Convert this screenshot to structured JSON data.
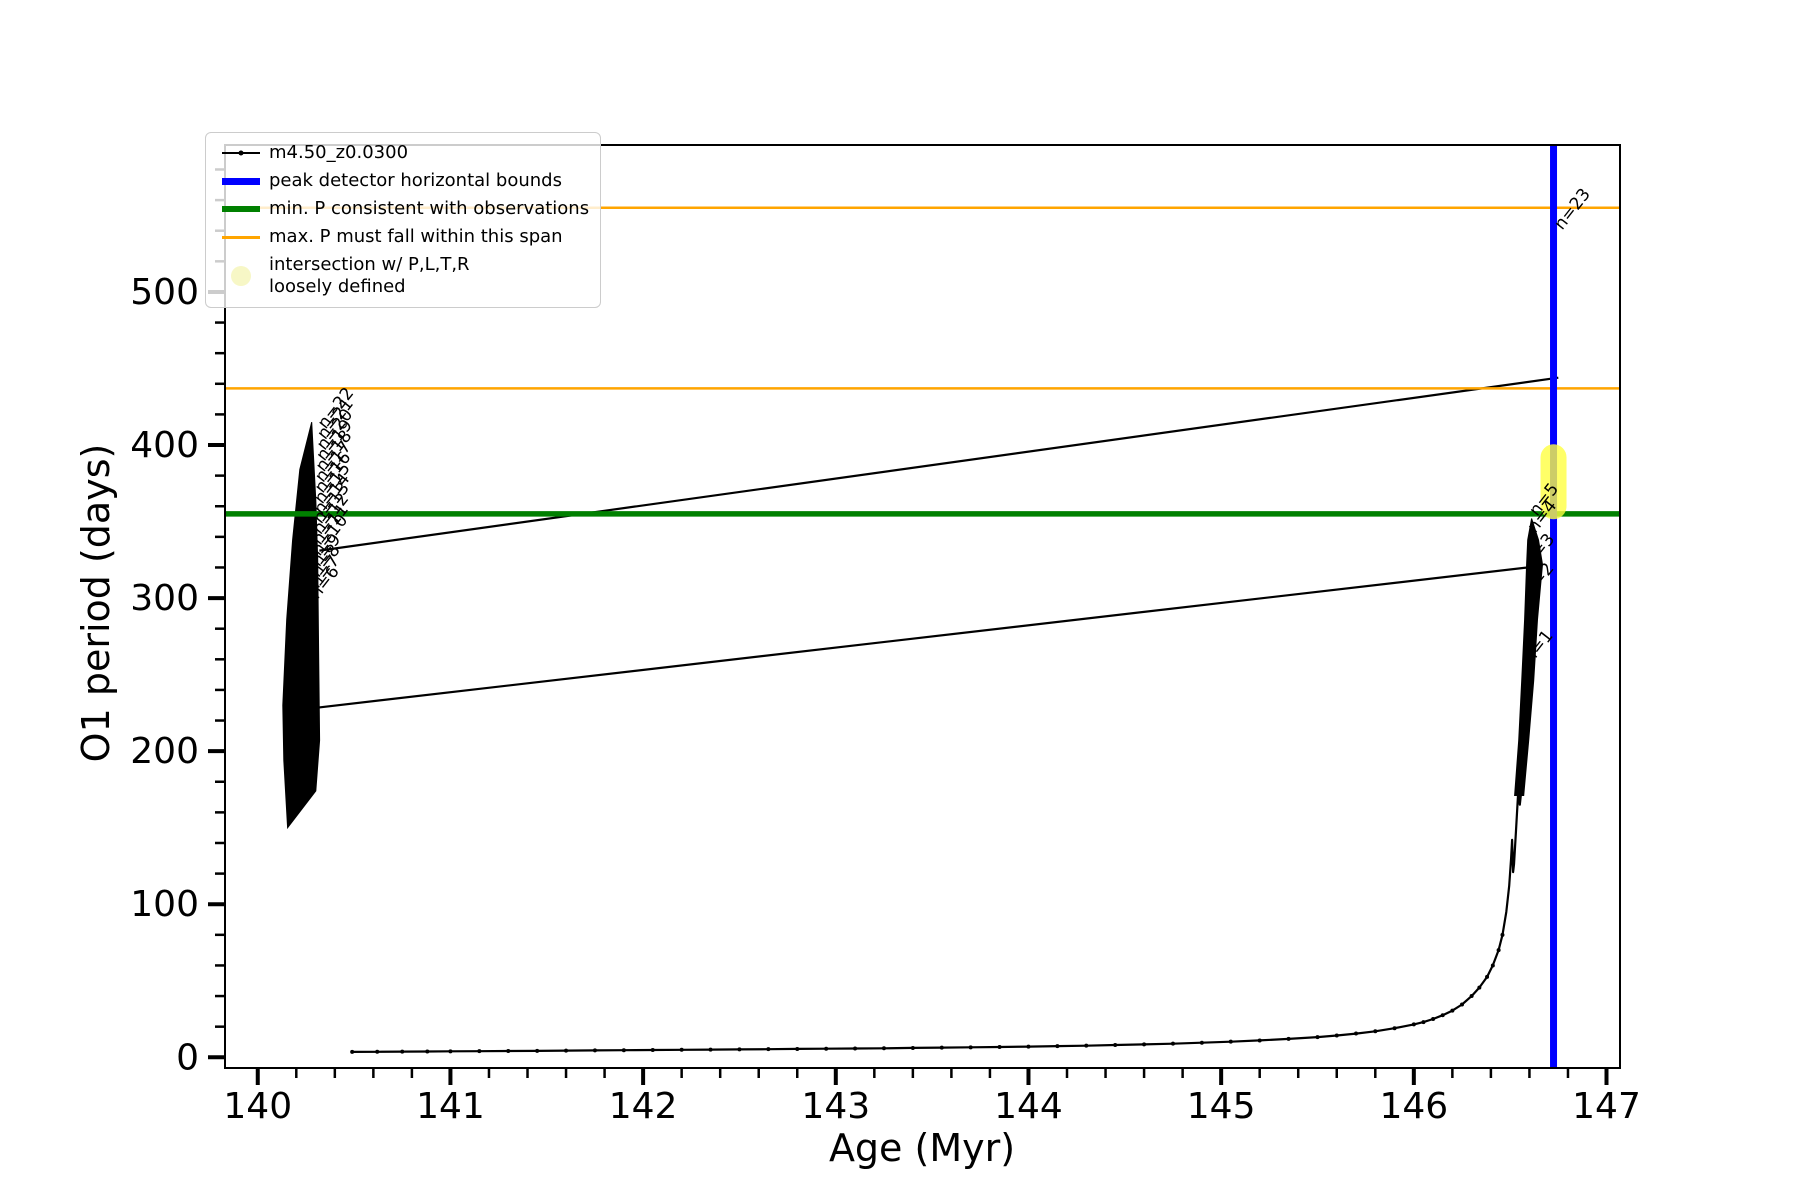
{
  "figure": {
    "background": "#ffffff"
  },
  "legend": {
    "entries": [
      {
        "label": "m4.50_z0.0300",
        "type": "line-with-marker",
        "color": "#000000"
      },
      {
        "label": "peak detector horizontal bounds",
        "type": "thick-line",
        "color": "#0000ff"
      },
      {
        "label": "min. P consistent with observations",
        "type": "thick-line",
        "color": "#008000"
      },
      {
        "label": "max. P must fall within this span",
        "type": "line",
        "color": "#ffa500"
      },
      {
        "label": "intersection w/ P,L,T,R\nloosely defined",
        "type": "dot",
        "color": "#f7f7c6"
      }
    ]
  },
  "chart_data": {
    "type": "line",
    "title": "",
    "xlabel": "Age (Myr)",
    "ylabel": "O1 period (days)",
    "xlim": [
      139.83,
      147.07
    ],
    "ylim": [
      -7,
      596
    ],
    "xticks": [
      140,
      141,
      142,
      143,
      144,
      145,
      146,
      147
    ],
    "yticks": [
      0,
      100,
      200,
      300,
      400,
      500
    ],
    "x_minor_step": 0.2,
    "y_minor_step": 20,
    "grid": false,
    "legend_position": "upper left",
    "series_name": "m4.50_z0.0300",
    "series_color": "#000000",
    "bottom_curve": [
      [
        140.49,
        3.5
      ],
      [
        140.62,
        3.6
      ],
      [
        140.75,
        3.7
      ],
      [
        140.88,
        3.8
      ],
      [
        141.0,
        3.9
      ],
      [
        141.15,
        4.0
      ],
      [
        141.3,
        4.1
      ],
      [
        141.45,
        4.2
      ],
      [
        141.6,
        4.35
      ],
      [
        141.75,
        4.5
      ],
      [
        141.9,
        4.6
      ],
      [
        142.05,
        4.75
      ],
      [
        142.2,
        4.9
      ],
      [
        142.35,
        5.0
      ],
      [
        142.5,
        5.15
      ],
      [
        142.65,
        5.3
      ],
      [
        142.8,
        5.45
      ],
      [
        142.95,
        5.6
      ],
      [
        143.1,
        5.75
      ],
      [
        143.25,
        5.9
      ],
      [
        143.4,
        6.1
      ],
      [
        143.55,
        6.3
      ],
      [
        143.7,
        6.5
      ],
      [
        143.85,
        6.7
      ],
      [
        144.0,
        7.0
      ],
      [
        144.15,
        7.3
      ],
      [
        144.3,
        7.6
      ],
      [
        144.45,
        8.0
      ],
      [
        144.6,
        8.4
      ],
      [
        144.75,
        8.9
      ],
      [
        144.9,
        9.5
      ],
      [
        145.05,
        10.2
      ],
      [
        145.2,
        11.0
      ],
      [
        145.35,
        12.0
      ],
      [
        145.5,
        13.2
      ],
      [
        145.6,
        14.2
      ],
      [
        145.7,
        15.5
      ],
      [
        145.8,
        17.0
      ],
      [
        145.9,
        19.0
      ],
      [
        146.0,
        21.5
      ],
      [
        146.05,
        23.0
      ],
      [
        146.1,
        25.0
      ],
      [
        146.15,
        27.5
      ],
      [
        146.2,
        30.5
      ],
      [
        146.25,
        34.5
      ],
      [
        146.3,
        40.0
      ],
      [
        146.34,
        45.5
      ],
      [
        146.38,
        52.5
      ],
      [
        146.41,
        60.0
      ],
      [
        146.44,
        70.0
      ],
      [
        146.46,
        80.0
      ],
      [
        146.48,
        95.0
      ],
      [
        146.495,
        112.0
      ],
      [
        146.505,
        130.0
      ],
      [
        146.51,
        142.0
      ],
      [
        146.515,
        121.0
      ],
      [
        146.52,
        126.0
      ],
      [
        146.53,
        148.0
      ],
      [
        146.54,
        170.0
      ],
      [
        146.545,
        182.0
      ],
      [
        146.55,
        165.0
      ],
      [
        146.555,
        171.0
      ],
      [
        146.56,
        195.0
      ],
      [
        146.565,
        186.0
      ],
      [
        146.57,
        212.0
      ]
    ],
    "jump_lines": [
      [
        [
          140.32,
          331
        ],
        [
          146.75,
          444
        ]
      ],
      [
        [
          140.28,
          228
        ],
        [
          146.59,
          320
        ]
      ]
    ],
    "clusters": [
      [
        [
          140.28,
          415
        ],
        [
          140.301,
          364
        ],
        [
          140.311,
          325
        ],
        [
          140.316,
          266
        ],
        [
          140.321,
          207
        ],
        [
          140.301,
          174
        ],
        [
          140.155,
          150
        ],
        [
          140.135,
          194
        ],
        [
          140.13,
          230
        ],
        [
          140.15,
          286
        ],
        [
          140.181,
          338
        ],
        [
          140.218,
          384
        ]
      ],
      [
        [
          146.611,
          352
        ],
        [
          146.647,
          338
        ],
        [
          146.668,
          322
        ],
        [
          146.642,
          286
        ],
        [
          146.622,
          246
        ],
        [
          146.596,
          207
        ],
        [
          146.57,
          171
        ],
        [
          146.523,
          171
        ],
        [
          146.544,
          207
        ],
        [
          146.56,
          246
        ],
        [
          146.575,
          286
        ],
        [
          146.585,
          322
        ],
        [
          146.591,
          338
        ]
      ]
    ],
    "hlines": [
      {
        "name": "max-p-span-upper",
        "value": 555,
        "color": "#ffa500",
        "width": 2.5
      },
      {
        "name": "max-p-span-lower",
        "value": 437,
        "color": "#ffa500",
        "width": 2.5
      },
      {
        "name": "min-p-observed",
        "value": 355,
        "color": "#008000",
        "width": 5.5
      }
    ],
    "vlines": [
      {
        "name": "peak-detector-bound",
        "value": 146.725,
        "color": "#0000ff",
        "width": 7
      }
    ],
    "intersection_marker": {
      "x": 146.725,
      "y_from": 360,
      "y_to": 392,
      "color": "#ffff42",
      "opacity": 0.8
    },
    "annotations": [
      {
        "text": "n=23",
        "x": 146.77,
        "y": 540,
        "rot": -52
      },
      {
        "text": "n=5",
        "x": 146.64,
        "y": 353,
        "rot": -52
      },
      {
        "text": "n=4",
        "x": 146.63,
        "y": 342,
        "rot": -52
      },
      {
        "text": "n=3",
        "x": 146.62,
        "y": 320,
        "rot": -52
      },
      {
        "text": "n=2",
        "x": 146.616,
        "y": 301,
        "rot": -52
      },
      {
        "text": "n=1",
        "x": 146.611,
        "y": 257,
        "rot": -52
      },
      {
        "text": "n=22",
        "x": 140.352,
        "y": 410,
        "rot": -52
      },
      {
        "text": "n=21",
        "x": 140.35,
        "y": 403,
        "rot": -52
      },
      {
        "text": "n=20",
        "x": 140.347,
        "y": 396,
        "rot": -52
      },
      {
        "text": "n=19",
        "x": 140.345,
        "y": 389,
        "rot": -52
      },
      {
        "text": "n=18",
        "x": 140.342,
        "y": 382,
        "rot": -52
      },
      {
        "text": "n=17",
        "x": 140.339,
        "y": 375,
        "rot": -52
      },
      {
        "text": "n=16",
        "x": 140.337,
        "y": 368,
        "rot": -52
      },
      {
        "text": "n=15",
        "x": 140.334,
        "y": 361,
        "rot": -52
      },
      {
        "text": "n=14",
        "x": 140.332,
        "y": 354,
        "rot": -52
      },
      {
        "text": "n=13",
        "x": 140.329,
        "y": 348,
        "rot": -52
      },
      {
        "text": "n=12",
        "x": 140.326,
        "y": 341,
        "rot": -52
      },
      {
        "text": "n=11",
        "x": 140.324,
        "y": 334,
        "rot": -52
      },
      {
        "text": "n=10",
        "x": 140.321,
        "y": 327,
        "rot": -52
      },
      {
        "text": "n=9",
        "x": 140.319,
        "y": 320,
        "rot": -52
      },
      {
        "text": "n=8",
        "x": 140.316,
        "y": 313,
        "rot": -52
      },
      {
        "text": "n=7",
        "x": 140.313,
        "y": 306,
        "rot": -52
      },
      {
        "text": "n=6",
        "x": 140.311,
        "y": 299,
        "rot": -52
      }
    ]
  }
}
